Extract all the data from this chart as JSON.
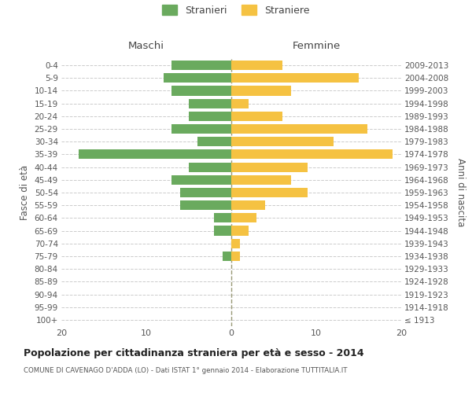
{
  "age_groups": [
    "100+",
    "95-99",
    "90-94",
    "85-89",
    "80-84",
    "75-79",
    "70-74",
    "65-69",
    "60-64",
    "55-59",
    "50-54",
    "45-49",
    "40-44",
    "35-39",
    "30-34",
    "25-29",
    "20-24",
    "15-19",
    "10-14",
    "5-9",
    "0-4"
  ],
  "birth_years": [
    "≤ 1913",
    "1914-1918",
    "1919-1923",
    "1924-1928",
    "1929-1933",
    "1934-1938",
    "1939-1943",
    "1944-1948",
    "1949-1953",
    "1954-1958",
    "1959-1963",
    "1964-1968",
    "1969-1973",
    "1974-1978",
    "1979-1983",
    "1984-1988",
    "1989-1993",
    "1994-1998",
    "1999-2003",
    "2004-2008",
    "2009-2013"
  ],
  "maschi": [
    0,
    0,
    0,
    0,
    0,
    1,
    0,
    2,
    2,
    6,
    6,
    7,
    5,
    18,
    4,
    7,
    5,
    5,
    7,
    8,
    7
  ],
  "femmine": [
    0,
    0,
    0,
    0,
    0,
    1,
    1,
    2,
    3,
    4,
    9,
    7,
    9,
    19,
    12,
    16,
    6,
    2,
    7,
    15,
    6
  ],
  "male_color": "#6aaa5e",
  "female_color": "#f5c242",
  "background_color": "#ffffff",
  "grid_color": "#cccccc",
  "bar_height": 0.75,
  "xlim": 20,
  "title": "Popolazione per cittadinanza straniera per età e sesso - 2014",
  "subtitle": "COMUNE DI CAVENAGO D'ADDA (LO) - Dati ISTAT 1° gennaio 2014 - Elaborazione TUTTITALIA.IT",
  "ylabel_left": "Fasce di età",
  "ylabel_right": "Anni di nascita",
  "legend_male": "Stranieri",
  "legend_female": "Straniere",
  "maschi_header": "Maschi",
  "femmine_header": "Femmine"
}
